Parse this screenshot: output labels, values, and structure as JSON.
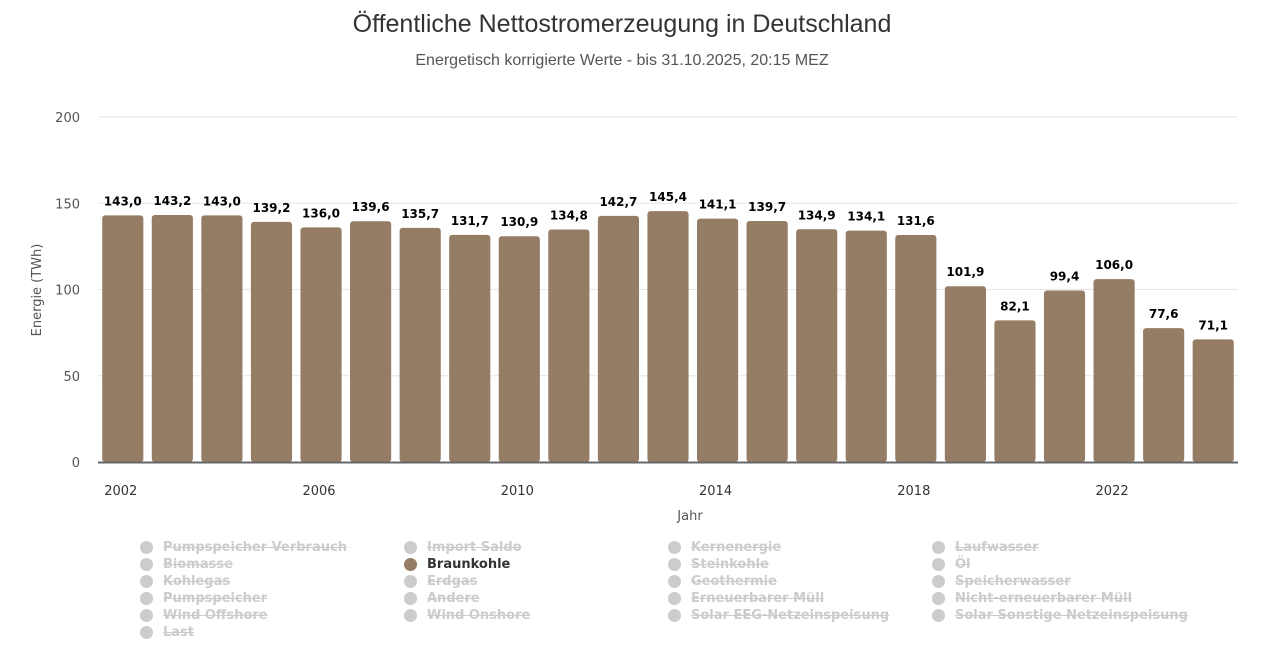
{
  "chart_data": {
    "type": "bar",
    "title": "Öffentliche Nettostromerzeugung in Deutschland",
    "subtitle": "Energetisch korrigierte Werte - bis 31.10.2025, 20:15 MEZ",
    "xlabel": "Jahr",
    "ylabel": "Energie (TWh)",
    "ylim": [
      0,
      200
    ],
    "yticks": [
      "0",
      "50",
      "100",
      "150",
      "200"
    ],
    "xticks": [
      "2002",
      "2006",
      "2010",
      "2014",
      "2018",
      "2022"
    ],
    "grid": true,
    "categories": [
      "2002",
      "2003",
      "2004",
      "2005",
      "2006",
      "2007",
      "2008",
      "2009",
      "2010",
      "2011",
      "2012",
      "2013",
      "2014",
      "2015",
      "2016",
      "2017",
      "2018",
      "2019",
      "2020",
      "2021",
      "2022",
      "2023",
      "2024"
    ],
    "series": [
      {
        "name": "Braunkohle",
        "color": "#957c64",
        "values": [
          143.0,
          143.2,
          143.0,
          139.2,
          136.0,
          139.6,
          135.7,
          131.7,
          130.9,
          134.8,
          142.7,
          145.4,
          141.1,
          139.7,
          134.9,
          134.1,
          131.6,
          101.9,
          82.1,
          99.4,
          106.0,
          77.6,
          71.1
        ],
        "labels": [
          "143,0",
          "143,2",
          "143,0",
          "139,2",
          "136,0",
          "139,6",
          "135,7",
          "131,7",
          "130,9",
          "134,8",
          "142,7",
          "145,4",
          "141,1",
          "139,7",
          "134,9",
          "134,1",
          "131,6",
          "101,9",
          "82,1",
          "99,4",
          "106,0",
          "77,6",
          "71,1"
        ]
      }
    ],
    "legend": {
      "placement": "bottom",
      "items": [
        {
          "label": "Pumpspeicher Verbrauch",
          "active": false
        },
        {
          "label": "Import Saldo",
          "active": false
        },
        {
          "label": "Kernenergie",
          "active": false
        },
        {
          "label": "Laufwasser",
          "active": false
        },
        {
          "label": "Biomasse",
          "active": false
        },
        {
          "label": "Braunkohle",
          "active": true
        },
        {
          "label": "Steinkohle",
          "active": false
        },
        {
          "label": "Öl",
          "active": false
        },
        {
          "label": "Kohlegas",
          "active": false
        },
        {
          "label": "Erdgas",
          "active": false
        },
        {
          "label": "Geothermie",
          "active": false
        },
        {
          "label": "Speicherwasser",
          "active": false
        },
        {
          "label": "Pumpspeicher",
          "active": false
        },
        {
          "label": "Andere",
          "active": false
        },
        {
          "label": "Erneuerbarer Müll",
          "active": false
        },
        {
          "label": "Nicht-erneuerbarer Müll",
          "active": false
        },
        {
          "label": "Wind Offshore",
          "active": false
        },
        {
          "label": "Wind Onshore",
          "active": false
        },
        {
          "label": "Solar EEG-Netzeinspeisung",
          "active": false
        },
        {
          "label": "Solar Sonstige Netzeinspeisung",
          "active": false
        },
        {
          "label": "Last",
          "active": false
        }
      ]
    }
  },
  "colors": {
    "bar": "#957c64",
    "inactive": "#cccccc",
    "grid": "#e6e6e6",
    "axis": "#666666"
  }
}
